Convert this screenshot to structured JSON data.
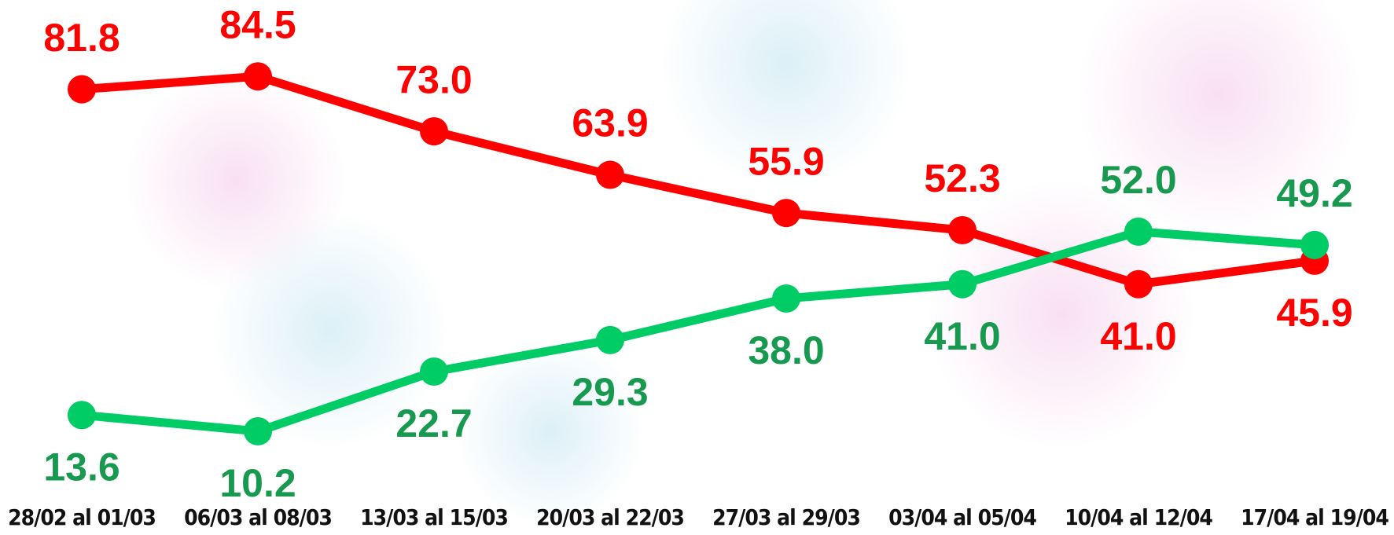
{
  "chart_data": {
    "type": "line",
    "categories": [
      "28/02 al 01/03",
      "06/03 al 08/03",
      "13/03 al 15/03",
      "20/03 al 22/03",
      "27/03 al 29/03",
      "03/04 al 05/04",
      "10/04 al 12/04",
      "17/04 al 19/04"
    ],
    "series": [
      {
        "color": "#ff0000",
        "label_color": "#ff0000",
        "values": [
          81.8,
          84.5,
          73.0,
          63.9,
          55.9,
          52.3,
          41.0,
          45.9
        ],
        "value_labels": [
          "81.8",
          "84.5",
          "73.0",
          "63.9",
          "55.9",
          "52.3",
          "41.0",
          "45.9"
        ]
      },
      {
        "color": "#00cc66",
        "label_color": "#179a4f",
        "values": [
          13.6,
          10.2,
          22.7,
          29.3,
          38.0,
          41.0,
          52.0,
          49.2
        ],
        "value_labels": [
          "13.6",
          "10.2",
          "22.7",
          "29.3",
          "38.0",
          "41.0",
          "52.0",
          "49.2"
        ]
      }
    ],
    "ylim": [
      0,
      100
    ],
    "grid": false
  }
}
